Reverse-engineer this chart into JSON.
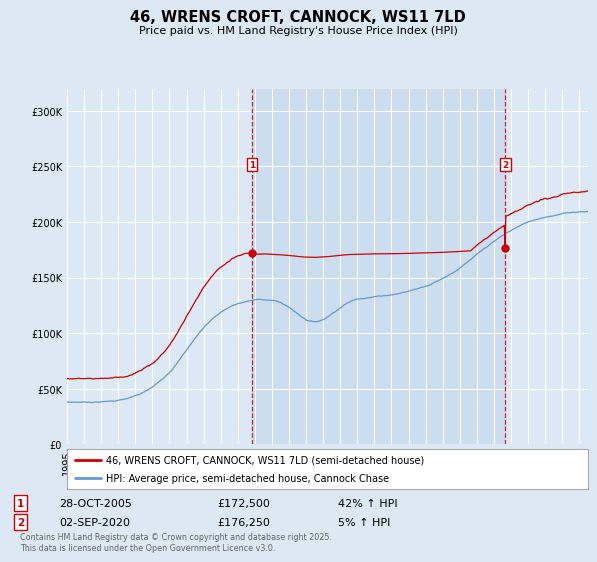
{
  "title": "46, WRENS CROFT, CANNOCK, WS11 7LD",
  "subtitle": "Price paid vs. HM Land Registry's House Price Index (HPI)",
  "background_color": "#dce9f5",
  "plot_bg_color": "#dce9f5",
  "shaded_bg_color": "#ccddf0",
  "ylim": [
    0,
    320000
  ],
  "yticks": [
    0,
    50000,
    100000,
    150000,
    200000,
    250000,
    300000
  ],
  "ytick_labels": [
    "£0",
    "£50K",
    "£100K",
    "£150K",
    "£200K",
    "£250K",
    "£300K"
  ],
  "red_line_color": "#cc0000",
  "blue_line_color": "#6699cc",
  "grid_color": "#ffffff",
  "vline_color": "#cc0000",
  "marker1_year": 2005.83,
  "marker1_label": "1",
  "marker1_price": 172500,
  "marker1_date": "28-OCT-2005",
  "marker1_hpi": "42% ↑ HPI",
  "marker2_year": 2020.67,
  "marker2_label": "2",
  "marker2_price": 176250,
  "marker2_date": "02-SEP-2020",
  "marker2_hpi": "5% ↑ HPI",
  "legend_red": "46, WRENS CROFT, CANNOCK, WS11 7LD (semi-detached house)",
  "legend_blue": "HPI: Average price, semi-detached house, Cannock Chase",
  "footnote": "Contains HM Land Registry data © Crown copyright and database right 2025.\nThis data is licensed under the Open Government Licence v3.0.",
  "xmin": 1995,
  "xmax": 2025.5
}
